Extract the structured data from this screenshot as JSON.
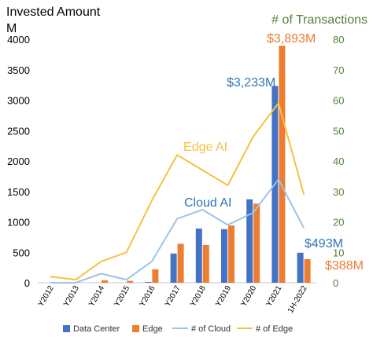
{
  "chart_data": {
    "type": "bar",
    "left_axis_title": [
      "Invested Amount",
      "M"
    ],
    "right_axis_title": "# of Transactions",
    "categories": [
      "Y2012",
      "Y2013",
      "Y2014",
      "Y2015",
      "Y2016",
      "Y2017",
      "Y2018",
      "Y2019",
      "Y2020",
      "Y2021",
      "1H-2022"
    ],
    "bar_series": [
      {
        "name": "Data Center",
        "color": "#4472C4",
        "values": [
          0,
          0,
          0,
          0,
          10,
          480,
          890,
          880,
          1370,
          3233,
          493
        ]
      },
      {
        "name": "Edge",
        "color": "#ED7D31",
        "values": [
          0,
          0,
          40,
          30,
          220,
          640,
          620,
          940,
          1300,
          3893,
          388
        ]
      }
    ],
    "line_series": [
      {
        "name": "# of Cloud",
        "color": "#9DC3E6",
        "axis": "right",
        "values": [
          0,
          0,
          3,
          1,
          7,
          21,
          24,
          19,
          23,
          34,
          18
        ]
      },
      {
        "name": "# of Edge",
        "color": "#F5C242",
        "axis": "right",
        "values": [
          2,
          1,
          7,
          10,
          27,
          42,
          37,
          32,
          48,
          59,
          29
        ]
      }
    ],
    "left_axis": {
      "min": 0,
      "max": 4000,
      "ticks": [
        "0",
        "500",
        "1000",
        "1500",
        "2000",
        "2500",
        "3000",
        "3500",
        "4000"
      ]
    },
    "right_axis": {
      "min": 0,
      "max": 80,
      "ticks": [
        "0",
        "10",
        "20",
        "30",
        "40",
        "50",
        "60",
        "70",
        "80"
      ]
    },
    "annotations": {
      "dc_2021": "$3,233M",
      "edge_2021": "$3,893M",
      "dc_2022": "$493M",
      "edge_2022": "$388M",
      "edge_ai": "Edge AI",
      "cloud_ai": "Cloud AI"
    },
    "legend_position": "bottom",
    "grid": false
  }
}
